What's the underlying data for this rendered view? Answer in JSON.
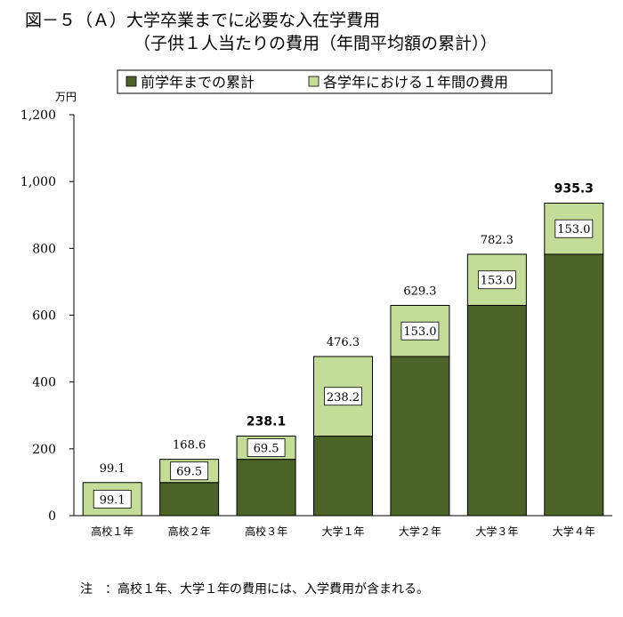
{
  "title": "図－５（Ａ）大学卒業までに必要な入在学費用",
  "subtitle": "（子供１人当たりの費用（年間平均額の累計））",
  "note": "注　：高校１年、大学１年の費用には、入学費用が含まれる。",
  "chart_data": {
    "type": "bar",
    "stacked": true,
    "ylabel": "万円",
    "ylim": [
      0,
      1200
    ],
    "yticks": [
      0,
      200,
      400,
      600,
      800,
      1000,
      1200
    ],
    "ytick_labels": [
      "0",
      "200",
      "400",
      "600",
      "800",
      "1,000",
      "1,200"
    ],
    "grid": false,
    "legend_position": "top",
    "categories": [
      "高校１年",
      "高校２年",
      "高校３年",
      "大学１年",
      "大学２年",
      "大学３年",
      "大学４年"
    ],
    "series": [
      {
        "name": "前学年までの累計",
        "color": "#4b6329",
        "values": [
          0,
          99.1,
          168.6,
          238.1,
          476.3,
          629.3,
          782.3
        ]
      },
      {
        "name": "各学年における１年間の費用",
        "color": "#c3dc97",
        "values": [
          99.1,
          69.5,
          69.5,
          238.2,
          153.0,
          153.0,
          153.0
        ],
        "labels": [
          "99.1",
          "69.5",
          "69.5",
          "238.2",
          "153.0",
          "153.0",
          "153.0"
        ]
      }
    ],
    "totals": [
      99.1,
      168.6,
      238.1,
      476.3,
      629.3,
      782.3,
      935.3
    ],
    "total_labels": [
      "99.1",
      "168.6",
      "238.1",
      "476.3",
      "629.3",
      "782.3",
      "935.3"
    ],
    "total_label_bold": [
      false,
      false,
      true,
      false,
      false,
      false,
      true
    ]
  }
}
